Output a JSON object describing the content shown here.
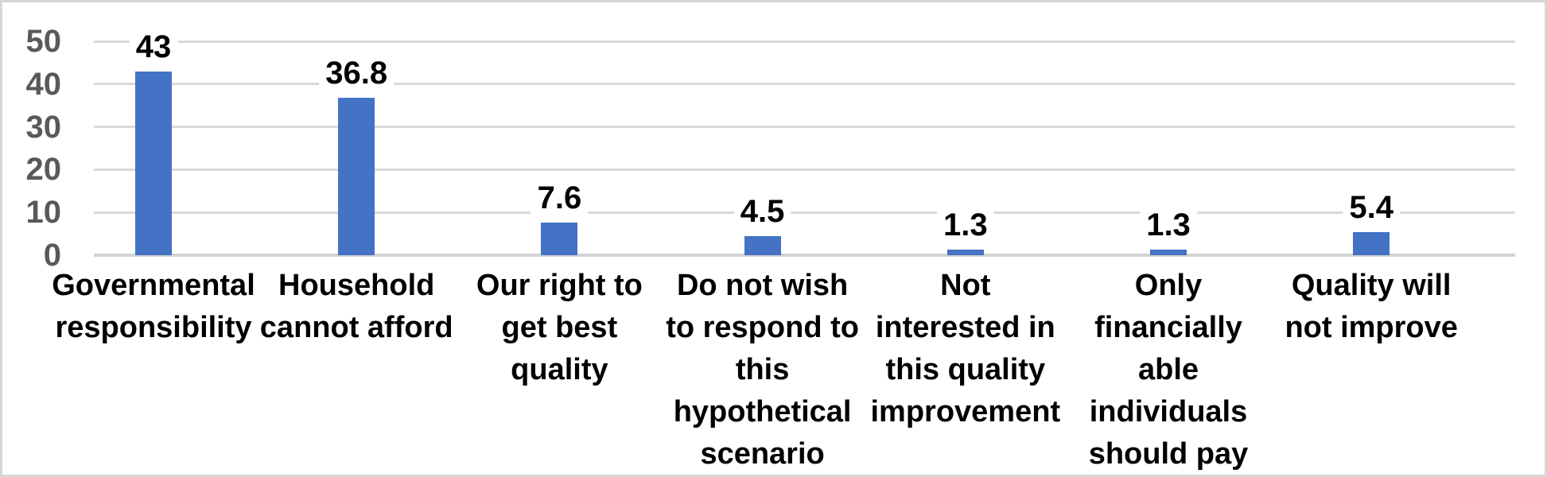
{
  "chart_data": {
    "type": "bar",
    "title": "",
    "xlabel": "",
    "ylabel": "",
    "categories": [
      "Governmental responsibility",
      "Household cannot afford",
      "Our right to get best quality",
      "Do not wish to respond to this hypothetical scenario",
      "Not interested in this quality improvement",
      "Only financially able individuals should pay",
      "Quality will not improve"
    ],
    "category_lines": [
      [
        "Governmental",
        "responsibility"
      ],
      [
        "Household",
        "cannot afford"
      ],
      [
        "Our right to",
        "get best",
        "quality"
      ],
      [
        "Do not wish",
        "to respond to",
        "this",
        "hypothetical",
        "scenario"
      ],
      [
        "Not",
        "interested in",
        "this quality",
        "improvement"
      ],
      [
        "Only",
        "financially",
        "able",
        "individuals",
        "should pay"
      ],
      [
        "Quality will",
        "not improve"
      ]
    ],
    "values": [
      43,
      36.8,
      7.6,
      4.5,
      1.3,
      1.3,
      5.4
    ],
    "data_labels": [
      "43",
      "36.8",
      "7.6",
      "4.5",
      "1.3",
      "1.3",
      "5.4"
    ],
    "yticks": [
      0,
      10,
      20,
      30,
      40,
      50
    ],
    "ylim": [
      0,
      50
    ],
    "grid": "horizontal",
    "legend_position": "none",
    "bar_color": "#4472c4",
    "gridline_color": "#d9d9d9",
    "axis_tick_color": "#595959",
    "data_label_color": "#000000",
    "category_label_color": "#000000",
    "background_color": "#ffffff",
    "border_color": "#d6d6d6"
  }
}
